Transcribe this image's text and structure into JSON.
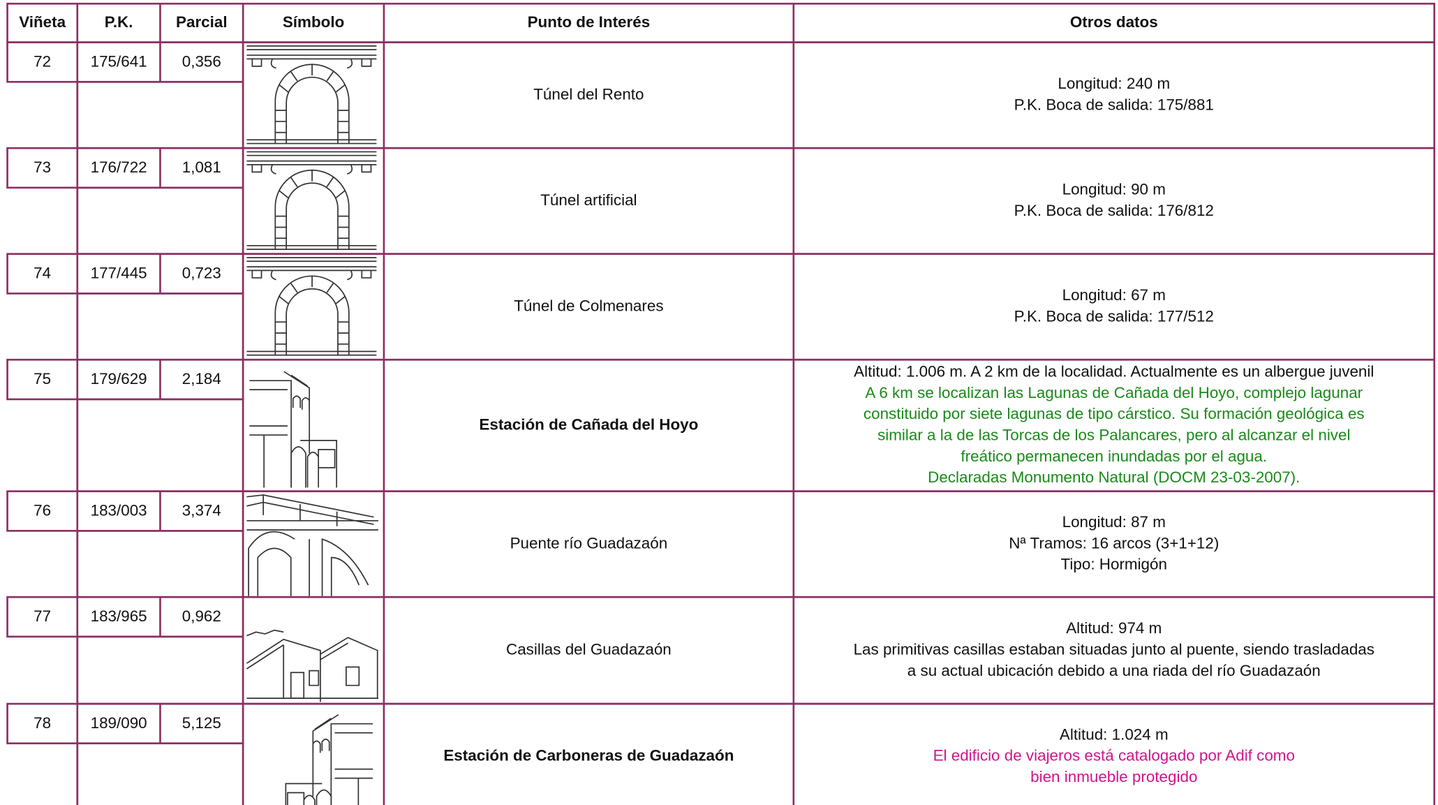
{
  "table": {
    "headers": [
      "Viñeta",
      "P.K.",
      "Parcial",
      "Símbolo",
      "Punto de Interés",
      "Otros datos"
    ],
    "rows": [
      {
        "vineta": "72",
        "pk": "175/641",
        "parcial": "0,356",
        "punto": "Túnel del Rento",
        "bold": false,
        "otros": [
          "Longitud: 240 m",
          "P.K. Boca de salida: 175/881"
        ]
      },
      {
        "vineta": "73",
        "pk": "176/722",
        "parcial": "1,081",
        "punto": "Túnel artificial",
        "bold": false,
        "otros": [
          "Longitud: 90 m",
          "P.K. Boca de salida: 176/812"
        ]
      },
      {
        "vineta": "74",
        "pk": "177/445",
        "parcial": "0,723",
        "punto": "Túnel de Colmenares",
        "bold": false,
        "otros": [
          "Longitud: 67 m",
          "P.K. Boca de salida: 177/512"
        ]
      },
      {
        "vineta": "75",
        "pk": "179/629",
        "parcial": "2,184",
        "punto": "Estación de Cañada del Hoyo",
        "bold": true,
        "otros": [
          "Altitud: 1.006 m. A 2 km de la localidad. Actualmente es un albergue juvenil"
        ],
        "destacado": [
          "A 6 km se localizan las Lagunas de Cañada del Hoyo, complejo lagunar",
          "constituido por siete lagunas de tipo cárstico. Su formación geológica es",
          "similar a la de las Torcas de los Palancares, pero al alcanzar el nivel",
          "freático permanecen inundadas por el agua.",
          "Declaradas Monumento Natural (DOCM 23-03-2007)."
        ],
        "destacado_color": "#1a8a1a"
      },
      {
        "vineta": "76",
        "pk": "183/003",
        "parcial": "3,374",
        "punto": "Puente río Guadazaón",
        "bold": false,
        "otros": [
          "Longitud: 87 m",
          "Nª Tramos: 16 arcos (3+1+12)",
          "Tipo: Hormigón"
        ]
      },
      {
        "vineta": "77",
        "pk": "183/965",
        "parcial": "0,962",
        "punto": "Casillas del Guadazaón",
        "bold": false,
        "otros": [
          "Altitud: 974 m",
          "Las primitivas casillas estaban situadas junto al puente, siendo trasladadas",
          "a su actual ubicación debido a una riada del río Guadazaón"
        ]
      },
      {
        "vineta": "78",
        "pk": "189/090",
        "parcial": "5,125",
        "punto": "Estación de Carboneras de Guadazaón",
        "bold": true,
        "otros": [
          "Altitud: 1.024 m"
        ],
        "destacado": [
          "El edificio de viajeros está catalogado por Adif como",
          "bien inmueble protegido"
        ],
        "destacado_color": "#d0148c"
      }
    ]
  }
}
